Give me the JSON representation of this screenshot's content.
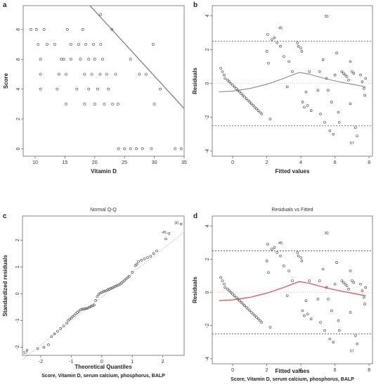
{
  "chart_data": [
    {
      "id": "a",
      "panel_letter": "a",
      "type": "scatter",
      "title": "",
      "xlabel": "Vitamin D",
      "ylabel": "Score",
      "xlim": [
        8,
        35
      ],
      "ylim": [
        -0.5,
        9.6
      ],
      "xticks": [
        10,
        15,
        20,
        25,
        30,
        35
      ],
      "yticks": [
        0,
        2,
        4,
        6,
        8
      ],
      "grid": false,
      "points": [
        [
          9.3,
          8
        ],
        [
          10.2,
          8
        ],
        [
          10.5,
          7
        ],
        [
          10.9,
          6
        ],
        [
          10.9,
          5
        ],
        [
          10.9,
          4
        ],
        [
          11.5,
          8
        ],
        [
          12,
          7
        ],
        [
          13.3,
          7
        ],
        [
          13.7,
          4
        ],
        [
          14,
          5
        ],
        [
          14.4,
          6
        ],
        [
          14.8,
          6
        ],
        [
          15.2,
          5
        ],
        [
          15.4,
          8
        ],
        [
          15.2,
          3
        ],
        [
          16,
          7
        ],
        [
          16,
          6
        ],
        [
          17,
          4
        ],
        [
          17.3,
          7
        ],
        [
          17.6,
          6
        ],
        [
          18,
          8
        ],
        [
          18.3,
          3
        ],
        [
          18.3,
          5
        ],
        [
          18.5,
          7
        ],
        [
          19,
          6
        ],
        [
          19,
          4
        ],
        [
          19.5,
          5
        ],
        [
          19.8,
          7
        ],
        [
          20,
          6
        ],
        [
          20,
          3
        ],
        [
          20.5,
          4
        ],
        [
          20.9,
          5
        ],
        [
          21,
          7
        ],
        [
          21,
          9
        ],
        [
          21.3,
          6
        ],
        [
          21.6,
          3
        ],
        [
          22,
          5
        ],
        [
          22.3,
          4
        ],
        [
          22.9,
          8
        ],
        [
          23,
          3
        ],
        [
          23.5,
          5
        ],
        [
          23.9,
          3
        ],
        [
          24,
          0
        ],
        [
          25,
          0
        ],
        [
          26,
          0
        ],
        [
          26,
          6
        ],
        [
          27,
          0
        ],
        [
          27.5,
          5
        ],
        [
          28,
          0
        ],
        [
          28.6,
          5
        ],
        [
          29.5,
          0
        ],
        [
          29.8,
          7
        ],
        [
          30,
          3
        ],
        [
          31,
          4
        ],
        [
          33.5,
          0
        ],
        [
          34.5,
          0
        ]
      ],
      "fit_line": {
        "x": [
          19.2,
          35
        ],
        "y": [
          9.6,
          2.7
        ]
      }
    },
    {
      "id": "b",
      "panel_letter": "b",
      "type": "scatter",
      "title": "",
      "xlabel": "Fitted values",
      "ylabel": "Residuals",
      "xlim": [
        -1.2,
        8.2
      ],
      "ylim": [
        -4.3,
        4.6
      ],
      "xticks": [
        0,
        2,
        4,
        6,
        8
      ],
      "yticks": [
        -4,
        -2,
        0,
        2,
        4
      ],
      "grid": false,
      "dashed_lines": [
        2.5,
        -2.5
      ],
      "zero_line": 0,
      "points": [
        [
          -0.7,
          0.9
        ],
        [
          -0.6,
          0.7
        ],
        [
          -0.5,
          0.5
        ],
        [
          -0.45,
          0.3
        ],
        [
          -0.3,
          0.2
        ],
        [
          -0.2,
          0.1
        ],
        [
          -0.1,
          0
        ],
        [
          0,
          -0.1
        ],
        [
          0.1,
          -0.2
        ],
        [
          0.2,
          -0.3
        ],
        [
          0.3,
          -0.4
        ],
        [
          0.4,
          -0.5
        ],
        [
          0.5,
          -0.6
        ],
        [
          0.6,
          -0.7
        ],
        [
          0.7,
          -0.8
        ],
        [
          0.8,
          -0.9
        ],
        [
          0.9,
          -1
        ],
        [
          1,
          -1.1
        ],
        [
          1.1,
          -1.2
        ],
        [
          1.2,
          -1.3
        ],
        [
          1.3,
          -1.4
        ],
        [
          1.4,
          -1.5
        ],
        [
          1.5,
          -1.6
        ],
        [
          1.6,
          -1.7
        ],
        [
          1.7,
          -1.8
        ],
        [
          2.05,
          2.9
        ],
        [
          2,
          1.9
        ],
        [
          2.1,
          1.2
        ],
        [
          2.2,
          -2.1
        ],
        [
          2.3,
          2.6
        ],
        [
          2.45,
          2.7
        ],
        [
          2.6,
          2.4
        ],
        [
          2.8,
          2.2
        ],
        [
          3,
          1.6
        ],
        [
          3.2,
          -0.2
        ],
        [
          3.3,
          1.3
        ],
        [
          3.5,
          0.7
        ],
        [
          3.8,
          2.4
        ],
        [
          3.85,
          2.2
        ],
        [
          4,
          2.1
        ],
        [
          4.05,
          1.9
        ],
        [
          4.1,
          -1.1
        ],
        [
          4.2,
          -1.4
        ],
        [
          4.3,
          -0.5
        ],
        [
          4.4,
          -1.3
        ],
        [
          4.5,
          0.7
        ],
        [
          4.6,
          -1.6
        ],
        [
          5,
          -0.4
        ],
        [
          5.1,
          0.7
        ],
        [
          5.15,
          -1.8
        ],
        [
          5.3,
          1.4
        ],
        [
          5.4,
          -2.3
        ],
        [
          5.5,
          0.3
        ],
        [
          5.6,
          -0.4
        ],
        [
          5.7,
          -2.8
        ],
        [
          5.8,
          -1.1
        ],
        [
          5.9,
          -3
        ],
        [
          6,
          0.5
        ],
        [
          6.1,
          1.8
        ],
        [
          6.2,
          -1.7
        ],
        [
          6.25,
          -2.3
        ],
        [
          6.4,
          0.7
        ],
        [
          6.5,
          0.6
        ],
        [
          6.6,
          0.5
        ],
        [
          6.7,
          0.4
        ],
        [
          6.8,
          0.2
        ],
        [
          6.9,
          -1.2
        ],
        [
          6.9,
          1.3
        ],
        [
          7,
          0.7
        ],
        [
          7.1,
          0.6
        ],
        [
          7.2,
          -2.6
        ],
        [
          7.3,
          -3.1
        ],
        [
          7.5,
          0.5
        ],
        [
          7.6,
          0.1
        ],
        [
          7.7,
          -0.3
        ],
        [
          7.75,
          -0.7
        ],
        [
          7.8,
          0.3
        ]
      ],
      "labels": [
        {
          "text": "30",
          "x": 5.5,
          "y": 3.9
        },
        {
          "text": "45",
          "x": 2.8,
          "y": 3.2
        },
        {
          "text": "57",
          "x": 7.0,
          "y": -3.6
        }
      ],
      "smooth": {
        "x": [
          -0.8,
          0,
          1,
          2,
          3,
          3.5,
          3.9,
          4.5,
          5,
          6,
          7,
          7.8
        ],
        "y": [
          -0.5,
          -0.45,
          -0.3,
          -0.05,
          0.3,
          0.5,
          0.65,
          0.55,
          0.4,
          0.15,
          -0.05,
          -0.2
        ]
      }
    },
    {
      "id": "c",
      "panel_letter": "c",
      "type": "scatter",
      "title": "Normal Q-Q",
      "xlabel": "Theoretical Quantiles",
      "sublabel": "Score, Vitamin D, serum calcium, phosphorus,  BALP",
      "ylabel": "Standardized residuals",
      "xlim": [
        -2.6,
        2.7
      ],
      "ylim": [
        -2.3,
        2.9
      ],
      "xticks": [
        -2,
        -1,
        0,
        1,
        2
      ],
      "yticks": [
        -2,
        -1,
        0,
        1,
        2
      ],
      "grid": false,
      "ref_line": {
        "x": [
          -2.6,
          2.7
        ],
        "y": [
          -2.45,
          2.3
        ]
      },
      "points": [
        [
          -2.45,
          -2.1
        ],
        [
          -2.1,
          -2.05
        ],
        [
          -1.9,
          -2
        ],
        [
          -1.75,
          -1.9
        ],
        [
          -1.65,
          -1.6
        ],
        [
          -1.55,
          -1.5
        ],
        [
          -1.45,
          -1.4
        ],
        [
          -1.35,
          -1.3
        ],
        [
          -1.25,
          -1.2
        ],
        [
          -1.15,
          -1.1
        ],
        [
          -1.1,
          -1
        ],
        [
          -1.05,
          -0.95
        ],
        [
          -1,
          -0.9
        ],
        [
          -0.95,
          -0.85
        ],
        [
          -0.9,
          -0.8
        ],
        [
          -0.85,
          -0.75
        ],
        [
          -0.8,
          -0.7
        ],
        [
          -0.75,
          -0.65
        ],
        [
          -0.7,
          -0.6
        ],
        [
          -0.65,
          -0.58
        ],
        [
          -0.6,
          -0.57
        ],
        [
          -0.55,
          -0.56
        ],
        [
          -0.5,
          -0.55
        ],
        [
          -0.45,
          -0.53
        ],
        [
          -0.4,
          -0.5
        ],
        [
          -0.35,
          -0.47
        ],
        [
          -0.3,
          -0.45
        ],
        [
          -0.25,
          -0.42
        ],
        [
          -0.2,
          -0.25
        ],
        [
          -0.15,
          -0.1
        ],
        [
          -0.1,
          -0.02
        ],
        [
          -0.05,
          0.02
        ],
        [
          0,
          0.05
        ],
        [
          0.05,
          0.08
        ],
        [
          0.1,
          0.1
        ],
        [
          0.15,
          0.12
        ],
        [
          0.2,
          0.15
        ],
        [
          0.25,
          0.17
        ],
        [
          0.3,
          0.2
        ],
        [
          0.35,
          0.22
        ],
        [
          0.4,
          0.25
        ],
        [
          0.45,
          0.28
        ],
        [
          0.5,
          0.3
        ],
        [
          0.55,
          0.33
        ],
        [
          0.6,
          0.36
        ],
        [
          0.65,
          0.4
        ],
        [
          0.7,
          0.45
        ],
        [
          0.75,
          0.5
        ],
        [
          0.8,
          0.55
        ],
        [
          0.85,
          0.6
        ],
        [
          0.9,
          0.65
        ],
        [
          1,
          0.8
        ],
        [
          1.1,
          1.05
        ],
        [
          1.15,
          1.1
        ],
        [
          1.2,
          1.2
        ],
        [
          1.3,
          1.25
        ],
        [
          1.4,
          1.3
        ],
        [
          1.5,
          1.35
        ],
        [
          1.6,
          1.4
        ],
        [
          1.7,
          1.5
        ],
        [
          1.8,
          1.6
        ],
        [
          2.1,
          2.05
        ]
      ],
      "labels": [
        {
          "text": "30",
          "x": 2.45,
          "y": 2.6
        },
        {
          "text": "45",
          "x": 2.05,
          "y": 2.25
        },
        {
          "text": "57",
          "x": -2.5,
          "y": -2.25
        }
      ],
      "extra_points": [
        [
          2.6,
          2.6
        ],
        [
          2.2,
          2.25
        ]
      ]
    },
    {
      "id": "d",
      "panel_letter": "d",
      "type": "scatter",
      "title": "Residuals vs Fitted",
      "xlabel": "Fitted values",
      "sublabel": "Score, Vitamin D, serum calcium, phosphorus,  BALP",
      "ylabel": "Residuals",
      "xlim": [
        -1.2,
        8.2
      ],
      "ylim": [
        -4.3,
        4.6
      ],
      "xticks": [
        0,
        2,
        4,
        6,
        8
      ],
      "yticks": [
        -4,
        -2,
        0,
        2,
        4
      ],
      "grid": false,
      "dashed_lines": [
        2.5,
        -2.5
      ],
      "zero_line": 0,
      "colors": {
        "dashed": "#3a3ad6",
        "smooth": "#e33a3a"
      },
      "same_points_as": "b",
      "labels": [
        {
          "text": "30",
          "x": 5.5,
          "y": 3.5
        },
        {
          "text": "45",
          "x": 2.8,
          "y": 2.9
        },
        {
          "text": "57",
          "x": 7.0,
          "y": -3.6
        }
      ]
    }
  ]
}
